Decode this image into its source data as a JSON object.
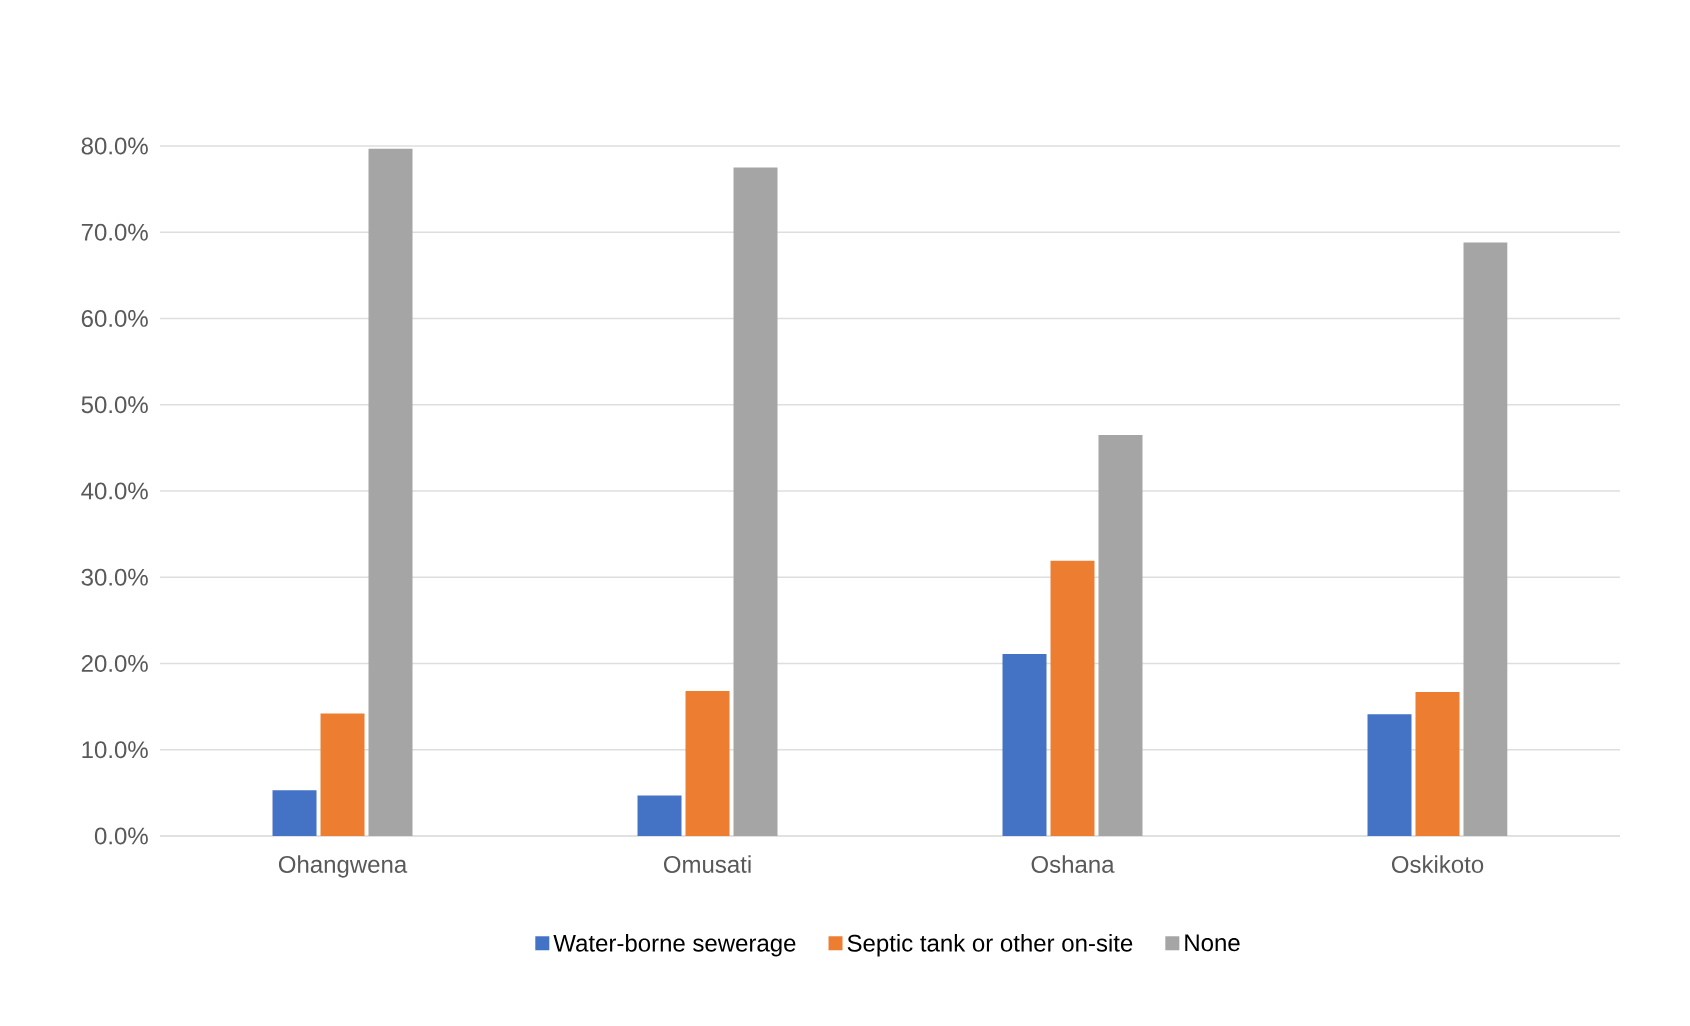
{
  "chart_data": {
    "type": "bar",
    "categories": [
      "Ohangwena",
      "Omusati",
      "Oshana",
      "Oskikoto"
    ],
    "series": [
      {
        "name": "Water-borne sewerage",
        "color": "#4472c4",
        "values": [
          5.3,
          4.7,
          21.1,
          14.1
        ]
      },
      {
        "name": "Septic tank or other on-site",
        "color": "#ed7d31",
        "values": [
          14.2,
          16.8,
          31.9,
          16.7
        ]
      },
      {
        "name": "None",
        "color": "#a5a5a5",
        "values": [
          79.7,
          77.5,
          46.5,
          68.8
        ]
      }
    ],
    "ylim": [
      0,
      80
    ],
    "yticks": [
      {
        "value": 0,
        "label": "0.0%"
      },
      {
        "value": 10,
        "label": "10.0%"
      },
      {
        "value": 20,
        "label": "20.0%"
      },
      {
        "value": 30,
        "label": "30.0%"
      },
      {
        "value": 40,
        "label": "40.0%"
      },
      {
        "value": 50,
        "label": "50.0%"
      },
      {
        "value": 60,
        "label": "60.0%"
      },
      {
        "value": 70,
        "label": "70.0%"
      },
      {
        "value": 80,
        "label": "80.0%"
      }
    ],
    "grid": "y",
    "legend": "bottom"
  }
}
